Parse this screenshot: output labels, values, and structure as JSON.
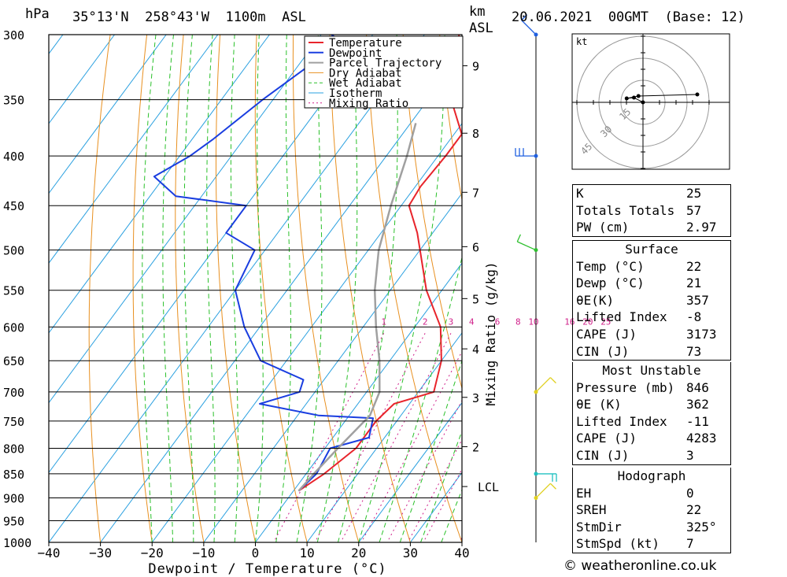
{
  "header": {
    "hpa_label": "hPa",
    "location": "35°13'N  258°43'W  1100m  ASL",
    "km_label": "km",
    "asl_label": "ASL",
    "datetime": "20.06.2021  00GMT  (Base: 12)"
  },
  "footer": {
    "copyright": "© weatheronline.co.uk"
  },
  "colors": {
    "temperature": "#e8242b",
    "dewpoint": "#1a3ee0",
    "parcel": "#a0a0a0",
    "dry_adiabat": "#e89020",
    "wet_adiabat": "#2ac02a",
    "isotherm": "#2aa0e0",
    "mixing_ratio": "#d0208a",
    "wind_blue": "#2060e0",
    "wind_green": "#30c030",
    "wind_yellow": "#e0d020",
    "wind_cyan": "#20c0c0"
  },
  "indices": {
    "rows": [
      {
        "k": "K",
        "v": "25"
      },
      {
        "k": "Totals Totals",
        "v": "57"
      },
      {
        "k": "PW (cm)",
        "v": "2.97"
      }
    ],
    "surface": {
      "title": "Surface",
      "rows": [
        {
          "k": "Temp (°C)",
          "v": "22"
        },
        {
          "k": "Dewp (°C)",
          "v": "21"
        },
        {
          "k": "θE(K)",
          "v": "357"
        },
        {
          "k": "Lifted Index",
          "v": "-8"
        },
        {
          "k": "CAPE (J)",
          "v": "3173"
        },
        {
          "k": "CIN (J)",
          "v": "73"
        }
      ]
    },
    "most_unstable": {
      "title": "Most Unstable",
      "rows": [
        {
          "k": "Pressure (mb)",
          "v": "846"
        },
        {
          "k": "θE (K)",
          "v": "362"
        },
        {
          "k": "Lifted Index",
          "v": "-11"
        },
        {
          "k": "CAPE (J)",
          "v": "4283"
        },
        {
          "k": "CIN (J)",
          "v": "3"
        }
      ]
    },
    "hodograph": {
      "title": "Hodograph",
      "rows": [
        {
          "k": "EH",
          "v": "0"
        },
        {
          "k": "SREH",
          "v": "22"
        },
        {
          "k": "StmDir",
          "v": "325°"
        },
        {
          "k": "StmSpd (kt)",
          "v": "7"
        }
      ]
    }
  },
  "hodo": {
    "unit": "kt",
    "ring_labels": [
      "15",
      "30",
      "45"
    ],
    "points": [
      [
        0,
        0
      ],
      [
        -10,
        -6
      ],
      [
        -18,
        -5
      ],
      [
        -5,
        -8
      ],
      [
        60,
        -10
      ]
    ]
  },
  "chart_data": {
    "type": "line",
    "title": "35°13'N  258°43'W  1100m  ASL",
    "xlabel": "Dewpoint / Temperature (°C)",
    "ylabel": "hPa",
    "y2label": "Mixing Ratio (g/kg)",
    "xlim": [
      -40,
      40
    ],
    "ylim": [
      1000,
      300
    ],
    "x_ticks": [
      -40,
      -30,
      -20,
      -10,
      0,
      10,
      20,
      30,
      40
    ],
    "x_tick_labels": [
      "−40",
      "−30",
      "−20",
      "−10",
      "0",
      "10",
      "20",
      "30",
      "40"
    ],
    "pressure_levels": [
      300,
      350,
      400,
      450,
      500,
      550,
      600,
      650,
      700,
      750,
      800,
      850,
      900,
      950,
      1000
    ],
    "km_ticks": [
      {
        "label": "9",
        "p": 323
      },
      {
        "label": "8",
        "p": 379
      },
      {
        "label": "7",
        "p": 436
      },
      {
        "label": "6",
        "p": 496
      },
      {
        "label": "5",
        "p": 561
      },
      {
        "label": "4",
        "p": 632
      },
      {
        "label": "3",
        "p": 709
      },
      {
        "label": "2",
        "p": 797
      },
      {
        "label": "LCL",
        "p": 876
      }
    ],
    "mixing_ratio_labels": [
      {
        "label": "1",
        "t": -6
      },
      {
        "label": "2",
        "t": 2
      },
      {
        "label": "3",
        "t": 7
      },
      {
        "label": "4",
        "t": 11
      },
      {
        "label": "6",
        "t": 16
      },
      {
        "label": "8",
        "t": 20
      },
      {
        "label": "10",
        "t": 23
      },
      {
        "label": "16",
        "t": 30
      },
      {
        "label": "20",
        "t": 33.5
      },
      {
        "label": "25",
        "t": 37
      }
    ],
    "legend": {
      "placement": "top-right",
      "entries": [
        "Temperature",
        "Dewpoint",
        "Parcel Trajectory",
        "Dry Adiabat",
        "Wet Adiabat",
        "Isotherm",
        "Mixing Ratio"
      ]
    },
    "series": [
      {
        "name": "Temperature",
        "points": [
          [
            -33.3,
            300
          ],
          [
            -25.5,
            350
          ],
          [
            -18.5,
            380
          ],
          [
            -18.5,
            400
          ],
          [
            -19,
            430
          ],
          [
            -18.5,
            450
          ],
          [
            -13,
            480
          ],
          [
            -10,
            500
          ],
          [
            -3,
            550
          ],
          [
            5,
            600
          ],
          [
            10,
            650
          ],
          [
            13,
            700
          ],
          [
            7,
            720
          ],
          [
            6,
            750
          ],
          [
            6,
            800
          ],
          [
            3.5,
            850
          ],
          [
            1,
            885
          ]
        ]
      },
      {
        "name": "Dewpoint",
        "points": [
          [
            -58,
            300
          ],
          [
            -55,
            305
          ],
          [
            -62,
            350
          ],
          [
            -66,
            385
          ],
          [
            -68,
            400
          ],
          [
            -72,
            420
          ],
          [
            -65,
            440
          ],
          [
            -50,
            450
          ],
          [
            -50,
            480
          ],
          [
            -42,
            500
          ],
          [
            -40,
            550
          ],
          [
            -33,
            600
          ],
          [
            -25,
            650
          ],
          [
            -14,
            680
          ],
          [
            -13,
            700
          ],
          [
            -19,
            720
          ],
          [
            -6,
            740
          ],
          [
            5,
            745
          ],
          [
            7,
            780
          ],
          [
            1,
            800
          ],
          [
            2,
            850
          ],
          [
            1,
            885
          ]
        ]
      },
      {
        "name": "Parcel Trajectory",
        "points": [
          [
            -29,
            370
          ],
          [
            -26,
            400
          ],
          [
            -22,
            450
          ],
          [
            -18,
            500
          ],
          [
            -13,
            550
          ],
          [
            -7.5,
            600
          ],
          [
            -2,
            650
          ],
          [
            2.5,
            700
          ],
          [
            4,
            740
          ],
          [
            2.5,
            800
          ],
          [
            1.5,
            850
          ],
          [
            1,
            885
          ]
        ]
      }
    ],
    "wind_barbs": [
      {
        "p": 300,
        "color": "wind_blue",
        "direction": "NW",
        "barbs": 1
      },
      {
        "p": 400,
        "color": "wind_blue",
        "direction": "W",
        "barbs": 3
      },
      {
        "p": 500,
        "color": "wind_green",
        "direction": "WNW",
        "barbs": 1
      },
      {
        "p": 700,
        "color": "wind_yellow",
        "direction": "SW",
        "barbs": 1
      },
      {
        "p": 850,
        "color": "wind_cyan",
        "direction": "E",
        "barbs": 2
      },
      {
        "p": 900,
        "color": "wind_yellow",
        "direction": "SW",
        "barbs": 1
      }
    ]
  }
}
